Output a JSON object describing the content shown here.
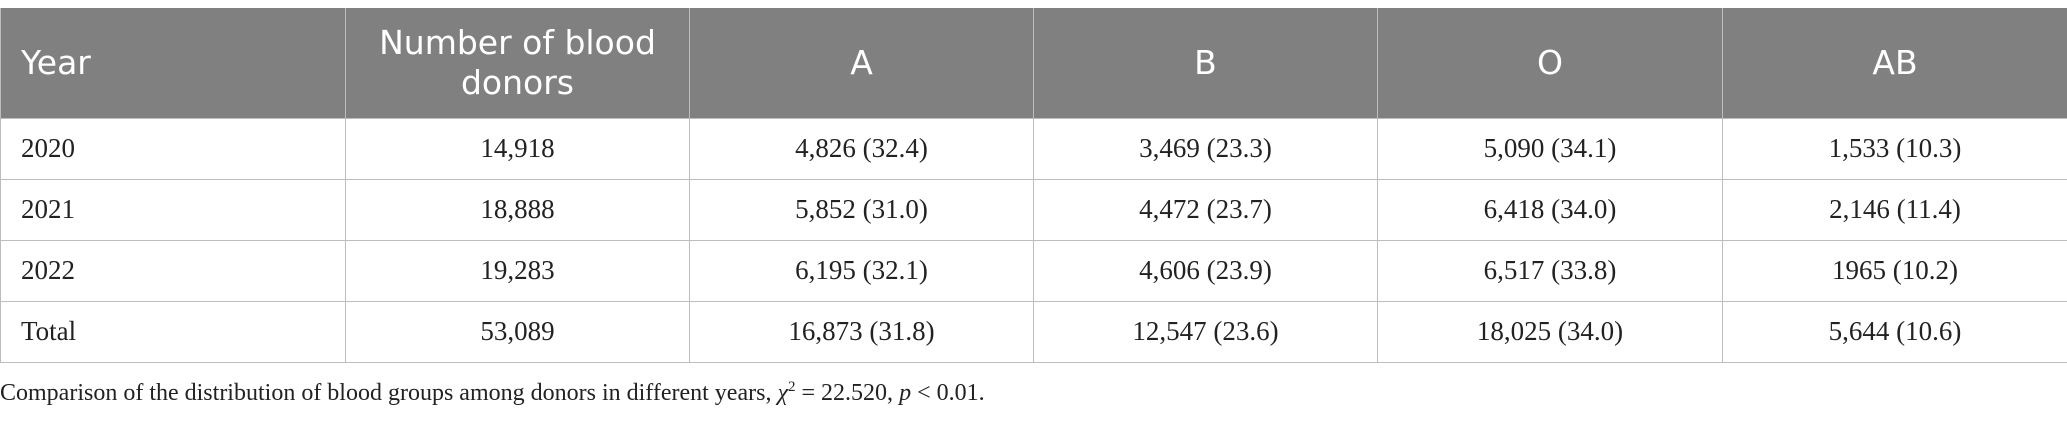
{
  "table": {
    "headers": [
      "Year",
      "Number of blood donors",
      "A",
      "B",
      "O",
      "AB"
    ],
    "rows": [
      [
        "2020",
        "14,918",
        "4,826 (32.4)",
        "3,469 (23.3)",
        "5,090 (34.1)",
        "1,533 (10.3)"
      ],
      [
        "2021",
        "18,888",
        "5,852 (31.0)",
        "4,472 (23.7)",
        "6,418 (34.0)",
        "2,146 (11.4)"
      ],
      [
        "2022",
        "19,283",
        "6,195 (32.1)",
        "4,606 (23.9)",
        "6,517 (33.8)",
        "1965 (10.2)"
      ],
      [
        "Total",
        "53,089",
        "16,873 (31.8)",
        "12,547 (23.6)",
        "18,025 (34.0)",
        "5,644 (10.6)"
      ]
    ]
  },
  "footnote": {
    "text_before": "Comparison of the distribution of blood groups among donors in different years,",
    "chi_symbol": "χ",
    "chi_exponent": "2",
    "chi_value": " = 22.520, ",
    "p_symbol": "p",
    "p_value": " < 0.01."
  },
  "colors": {
    "header_background": "#808080",
    "header_text": "#ffffff",
    "grid_line": "#bdbdbd"
  }
}
